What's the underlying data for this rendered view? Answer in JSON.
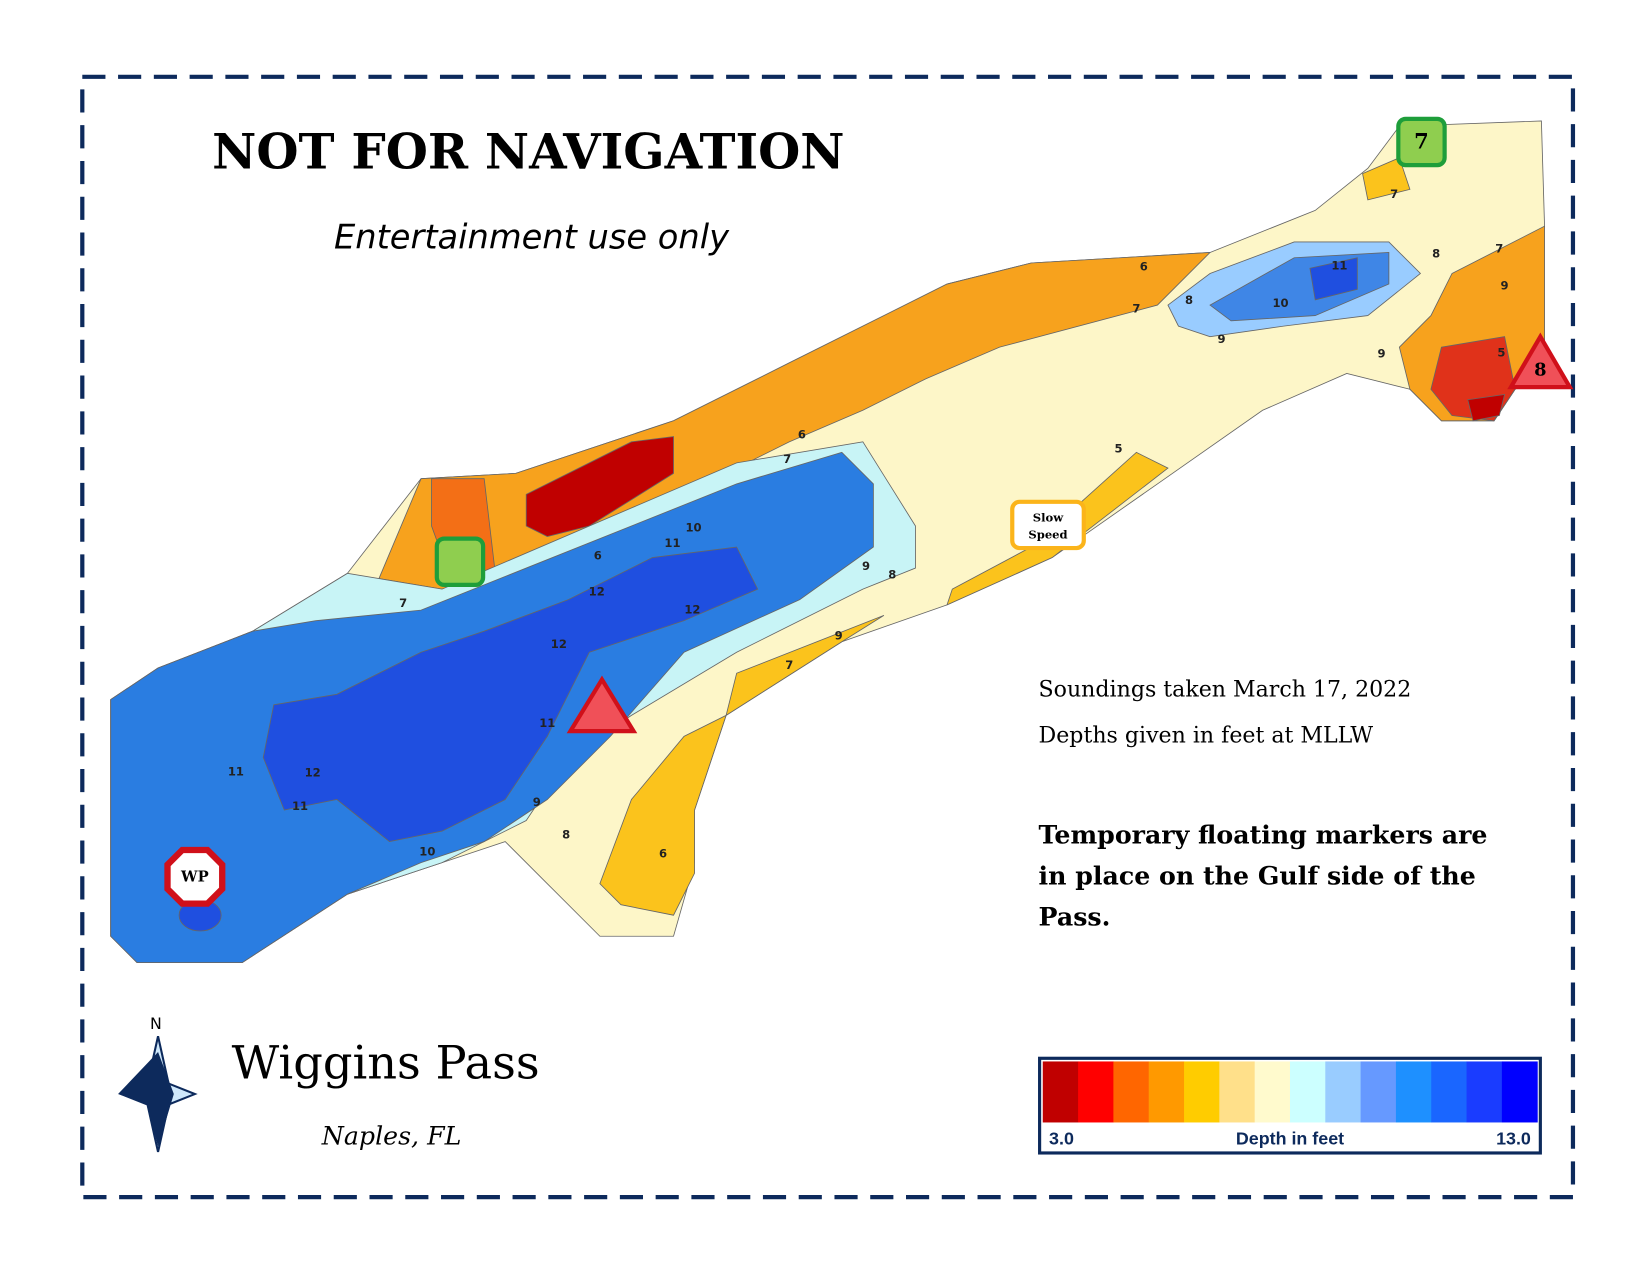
{
  "header": {
    "title": "NOT FOR NAVIGATION",
    "subtitle": "Entertainment use only"
  },
  "map": {
    "contour_labels": [
      "7",
      "6",
      "11",
      "8",
      "7",
      "10",
      "9",
      "9",
      "8",
      "9",
      "5",
      "7",
      "6",
      "7",
      "5",
      "9",
      "8",
      "10",
      "11",
      "6",
      "12",
      "12",
      "12",
      "11",
      "9",
      "8",
      "10",
      "11",
      "12",
      "11",
      "7",
      "9",
      "7",
      "6"
    ],
    "markers": {
      "green_top": "7",
      "red_right": "8",
      "wp": "WP",
      "slow": [
        "Slow",
        "Speed"
      ]
    }
  },
  "info": {
    "soundings": "Soundings taken March 17, 2022",
    "datum": "Depths given in feet at MLLW",
    "notice": [
      "Temporary floating markers are",
      "in place on the Gulf side of the",
      "Pass."
    ]
  },
  "place": {
    "name": "Wiggins Pass",
    "location": "Naples, FL",
    "compass": "N"
  },
  "legend": {
    "title": "Depth in feet",
    "min": {
      "value": 3,
      "label": "3.0"
    },
    "max": {
      "value": 13,
      "label": "13.0"
    },
    "colors": [
      "#c00000",
      "#ff0000",
      "#ff6600",
      "#ff9900",
      "#ffcc00",
      "#ffe08a",
      "#fffacd",
      "#ccffff",
      "#99ccff",
      "#6699ff",
      "#1e90ff",
      "#1a66ff",
      "#1a3cff",
      "#0000ff"
    ]
  }
}
